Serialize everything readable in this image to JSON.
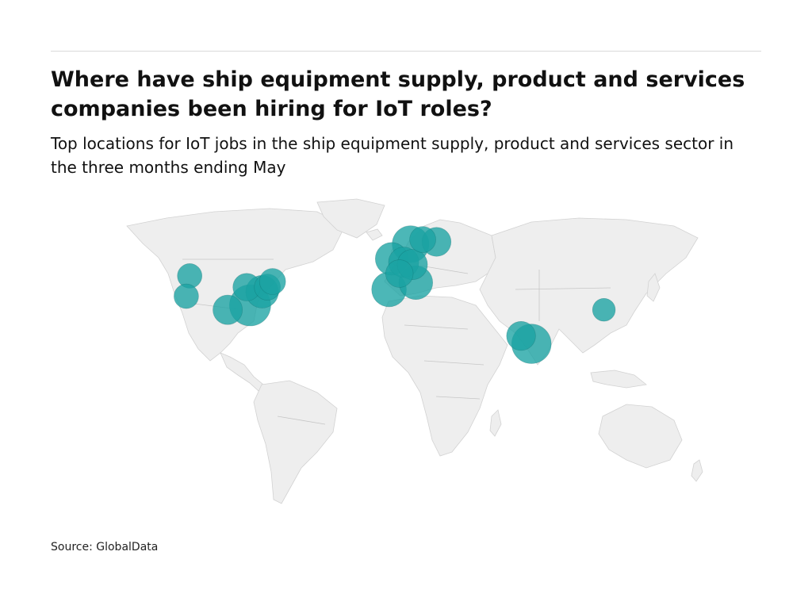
{
  "header": {
    "title": "Where have ship equipment supply, product and services companies been hiring for IoT roles?",
    "subtitle": "Top locations for IoT jobs in the ship equipment supply, product and services sector in the three months ending May"
  },
  "footer": {
    "source": "Source: GlobalData"
  },
  "colors": {
    "bubble": "#1aa3a3",
    "land": "#eeeeee",
    "border": "#c8c8c8"
  },
  "chart_data": {
    "type": "bubble-map",
    "title": "Where have ship equipment supply, product and services companies been hiring for IoT roles?",
    "subtitle": "Top locations for IoT jobs in the ship equipment supply, product and services sector in the three months ending May",
    "size_unit": "relative share of job postings (0-1)",
    "points": [
      {
        "name": "United States - Southeast",
        "lon": -84.0,
        "lat": 33.0,
        "size": 1.0
      },
      {
        "name": "United States - Mid-Atlantic",
        "lon": -77.0,
        "lat": 39.0,
        "size": 0.55
      },
      {
        "name": "United States - Great Lakes",
        "lon": -86.0,
        "lat": 41.0,
        "size": 0.35
      },
      {
        "name": "United States - Texas",
        "lon": -97.0,
        "lat": 31.0,
        "size": 0.42
      },
      {
        "name": "United States - New York",
        "lon": -74.0,
        "lat": 41.0,
        "size": 0.3
      },
      {
        "name": "United States - Northeast",
        "lon": -71.0,
        "lat": 43.5,
        "size": 0.3
      },
      {
        "name": "United States - Northwest",
        "lon": -119.0,
        "lat": 46.0,
        "size": 0.25
      },
      {
        "name": "United States - California",
        "lon": -121.0,
        "lat": 37.0,
        "size": 0.25
      },
      {
        "name": "Norway",
        "lon": 9.0,
        "lat": 60.0,
        "size": 0.75
      },
      {
        "name": "Sweden",
        "lon": 16.0,
        "lat": 62.0,
        "size": 0.3
      },
      {
        "name": "Finland",
        "lon": 24.0,
        "lat": 61.0,
        "size": 0.4
      },
      {
        "name": "United Kingdom",
        "lon": -2.0,
        "lat": 53.5,
        "size": 0.55
      },
      {
        "name": "Netherlands",
        "lon": 5.0,
        "lat": 52.0,
        "size": 0.45
      },
      {
        "name": "Germany",
        "lon": 10.0,
        "lat": 51.0,
        "size": 0.45
      },
      {
        "name": "France",
        "lon": 2.5,
        "lat": 47.0,
        "size": 0.35
      },
      {
        "name": "Italy",
        "lon": 12.0,
        "lat": 43.0,
        "size": 0.6
      },
      {
        "name": "Spain",
        "lon": -3.5,
        "lat": 40.0,
        "size": 0.65
      },
      {
        "name": "India",
        "lon": 79.0,
        "lat": 16.0,
        "size": 0.9
      },
      {
        "name": "India - West",
        "lon": 73.0,
        "lat": 19.5,
        "size": 0.4
      },
      {
        "name": "China",
        "lon": 121.0,
        "lat": 31.0,
        "size": 0.2
      }
    ]
  }
}
